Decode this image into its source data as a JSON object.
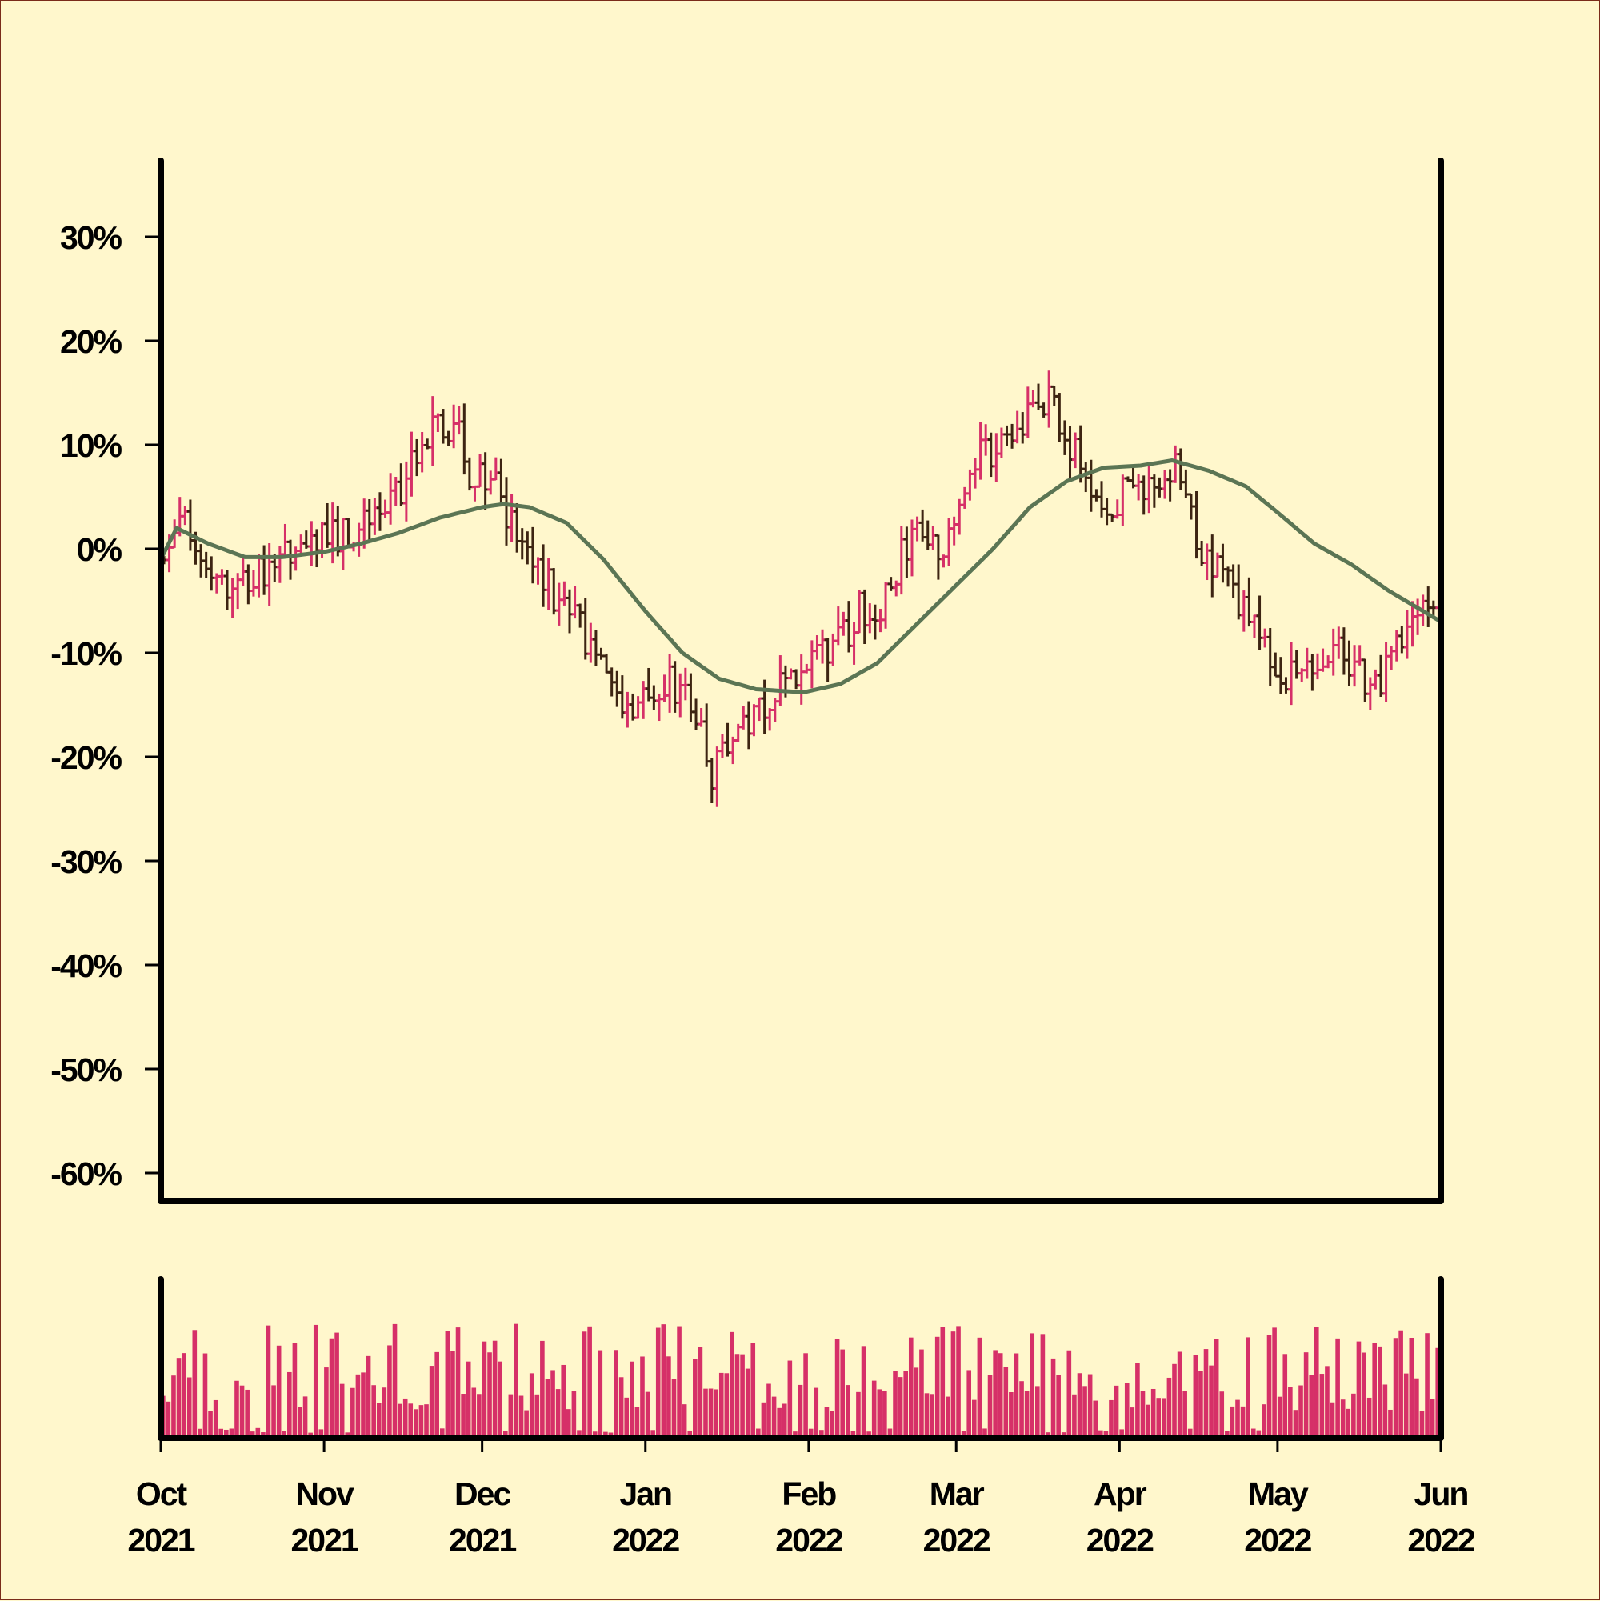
{
  "chart_data": {
    "type": "ohlc",
    "title": "",
    "xlabel": "",
    "ylabel": "",
    "ylim": [
      -0.6,
      0.3
    ],
    "yticks": [
      0.3,
      0.2,
      0.1,
      0.0,
      -0.1,
      -0.2,
      -0.3,
      -0.4,
      -0.5,
      -0.6
    ],
    "ytick_labels": [
      "30%",
      "20%",
      "10%",
      "0%",
      "-10%",
      "-20%",
      "-30%",
      "-40%",
      "-50%",
      "-60%"
    ],
    "x_range": [
      "2021-10-01",
      "2022-06-01"
    ],
    "xtick_labels": [
      [
        "Oct",
        "2021"
      ],
      [
        "Nov",
        "2021"
      ],
      [
        "Dec",
        "2021"
      ],
      [
        "Jan",
        "2022"
      ],
      [
        "Feb",
        "2022"
      ],
      [
        "Mar",
        "2022"
      ],
      [
        "Apr",
        "2022"
      ],
      [
        "May",
        "2022"
      ],
      [
        "Jun",
        "2022"
      ]
    ],
    "xtick_dates": [
      "2021-10-01",
      "2021-11-01",
      "2021-12-01",
      "2022-01-01",
      "2022-02-01",
      "2022-03-01",
      "2022-04-01",
      "2022-05-01",
      "2022-06-01"
    ],
    "price_anchors": [
      [
        "2021-10-01",
        -0.01
      ],
      [
        "2021-10-05",
        0.03
      ],
      [
        "2021-10-10",
        -0.03
      ],
      [
        "2021-10-18",
        -0.03
      ],
      [
        "2021-10-25",
        0.0
      ],
      [
        "2021-11-01",
        0.01
      ],
      [
        "2021-11-08",
        0.02
      ],
      [
        "2021-11-15",
        0.06
      ],
      [
        "2021-11-22",
        0.12
      ],
      [
        "2021-11-26",
        0.11
      ],
      [
        "2021-11-28",
        0.07
      ],
      [
        "2021-12-03",
        0.06
      ],
      [
        "2021-12-08",
        0.0
      ],
      [
        "2021-12-15",
        -0.05
      ],
      [
        "2021-12-22",
        -0.1
      ],
      [
        "2021-12-28",
        -0.15
      ],
      [
        "2022-01-01",
        -0.14
      ],
      [
        "2022-01-05",
        -0.13
      ],
      [
        "2022-01-10",
        -0.16
      ],
      [
        "2022-01-13",
        -0.22
      ],
      [
        "2022-01-18",
        -0.17
      ],
      [
        "2022-01-25",
        -0.14
      ],
      [
        "2022-01-30",
        -0.11
      ],
      [
        "2022-02-05",
        -0.1
      ],
      [
        "2022-02-10",
        -0.06
      ],
      [
        "2022-02-15",
        -0.05
      ],
      [
        "2022-02-20",
        0.02
      ],
      [
        "2022-02-26",
        0.0
      ],
      [
        "2022-03-03",
        0.08
      ],
      [
        "2022-03-08",
        0.1
      ],
      [
        "2022-03-14",
        0.13
      ],
      [
        "2022-03-18",
        0.14
      ],
      [
        "2022-03-22",
        0.1
      ],
      [
        "2022-03-28",
        0.04
      ],
      [
        "2022-04-04",
        0.06
      ],
      [
        "2022-04-12",
        0.08
      ],
      [
        "2022-04-15",
        0.01
      ],
      [
        "2022-04-22",
        -0.04
      ],
      [
        "2022-04-28",
        -0.1
      ],
      [
        "2022-05-02",
        -0.12
      ],
      [
        "2022-05-07",
        -0.11
      ],
      [
        "2022-05-12",
        -0.09
      ],
      [
        "2022-05-18",
        -0.14
      ],
      [
        "2022-05-21",
        -0.12
      ],
      [
        "2022-05-25",
        -0.08
      ],
      [
        "2022-06-01",
        -0.03
      ]
    ],
    "moving_average": [
      [
        "2021-10-01",
        -0.01
      ],
      [
        "2021-10-04",
        0.02
      ],
      [
        "2021-10-10",
        0.005
      ],
      [
        "2021-10-17",
        -0.008
      ],
      [
        "2021-10-24",
        -0.008
      ],
      [
        "2021-11-01",
        -0.003
      ],
      [
        "2021-11-08",
        0.005
      ],
      [
        "2021-11-15",
        0.015
      ],
      [
        "2021-11-23",
        0.03
      ],
      [
        "2021-12-01",
        0.04
      ],
      [
        "2021-12-05",
        0.043
      ],
      [
        "2021-12-10",
        0.04
      ],
      [
        "2021-12-17",
        0.025
      ],
      [
        "2021-12-24",
        -0.01
      ],
      [
        "2022-01-01",
        -0.06
      ],
      [
        "2022-01-08",
        -0.1
      ],
      [
        "2022-01-15",
        -0.125
      ],
      [
        "2022-01-22",
        -0.135
      ],
      [
        "2022-01-31",
        -0.138
      ],
      [
        "2022-02-07",
        -0.13
      ],
      [
        "2022-02-14",
        -0.11
      ],
      [
        "2022-02-21",
        -0.075
      ],
      [
        "2022-03-01",
        -0.035
      ],
      [
        "2022-03-08",
        0.0
      ],
      [
        "2022-03-15",
        0.04
      ],
      [
        "2022-03-22",
        0.065
      ],
      [
        "2022-03-29",
        0.078
      ],
      [
        "2022-04-05",
        0.08
      ],
      [
        "2022-04-11",
        0.085
      ],
      [
        "2022-04-18",
        0.075
      ],
      [
        "2022-04-25",
        0.06
      ],
      [
        "2022-05-01",
        0.035
      ],
      [
        "2022-05-08",
        0.005
      ],
      [
        "2022-05-15",
        -0.015
      ],
      [
        "2022-05-22",
        -0.04
      ],
      [
        "2022-06-01",
        -0.07
      ]
    ],
    "volume": {
      "min_fraction": 0.03,
      "max_fraction": 0.95
    }
  },
  "colors": {
    "background": "#fff7cc",
    "up_bar": "#d63068",
    "down_bar": "#3d2412",
    "moving_average": "#5b7554",
    "volume_bar": "#d63068",
    "axes": "#000000",
    "border": "#7a2b1a"
  }
}
